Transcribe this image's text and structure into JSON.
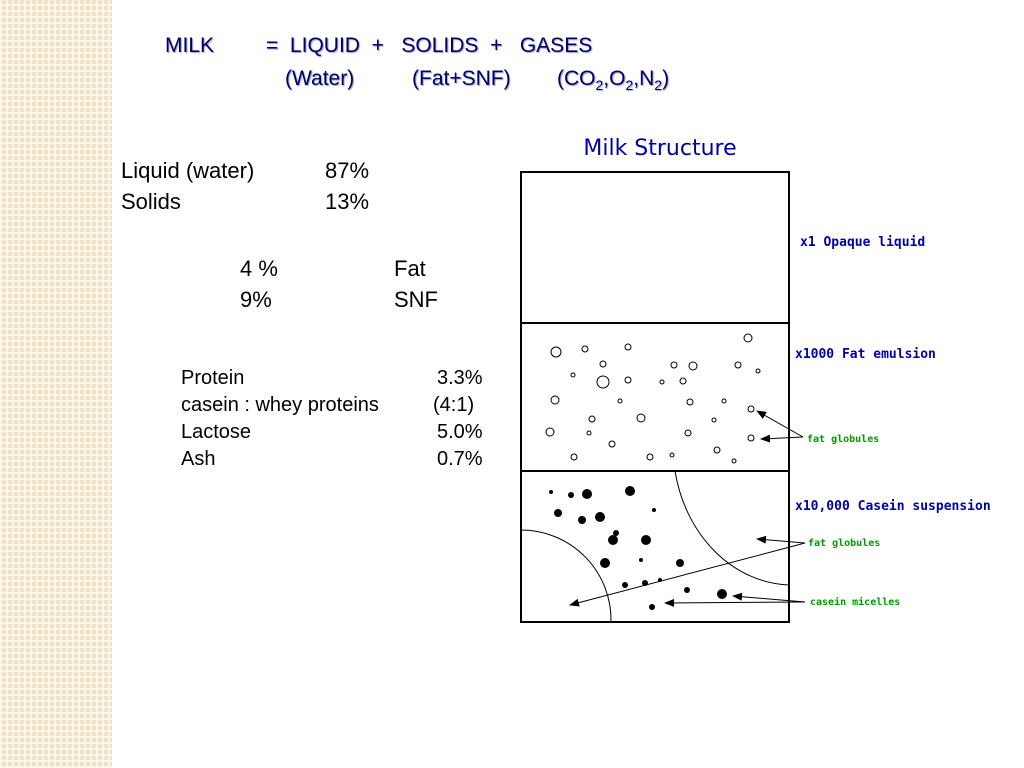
{
  "header": {
    "milk": "MILK",
    "equation": "=  LIQUID  +   SOLIDS  +   GASES",
    "water": "(Water)",
    "fat_snf": "(Fat+SNF)",
    "gases": [
      "(CO",
      "2",
      ",O",
      "2",
      ",N",
      "2",
      ")"
    ]
  },
  "composition": {
    "rows": [
      [
        "Liquid (water)",
        "87%"
      ],
      [
        "Solids",
        "13%"
      ]
    ]
  },
  "solids": {
    "rows": [
      [
        "4 %",
        "Fat"
      ],
      [
        "9%",
        "SNF"
      ]
    ]
  },
  "snf": {
    "rows": [
      [
        "Protein",
        "3.3%"
      ],
      [
        "casein : whey proteins",
        "(4:1)"
      ],
      [
        "Lactose",
        "5.0%"
      ],
      [
        "Ash",
        "0.7%"
      ]
    ]
  },
  "diagram": {
    "title": "Milk Structure",
    "levels": [
      "x1 Opaque liquid",
      "x1000 Fat emulsion",
      "x10,000 Casein suspension"
    ],
    "callouts": [
      "fat globules",
      "fat globules",
      "casein micelles"
    ]
  }
}
